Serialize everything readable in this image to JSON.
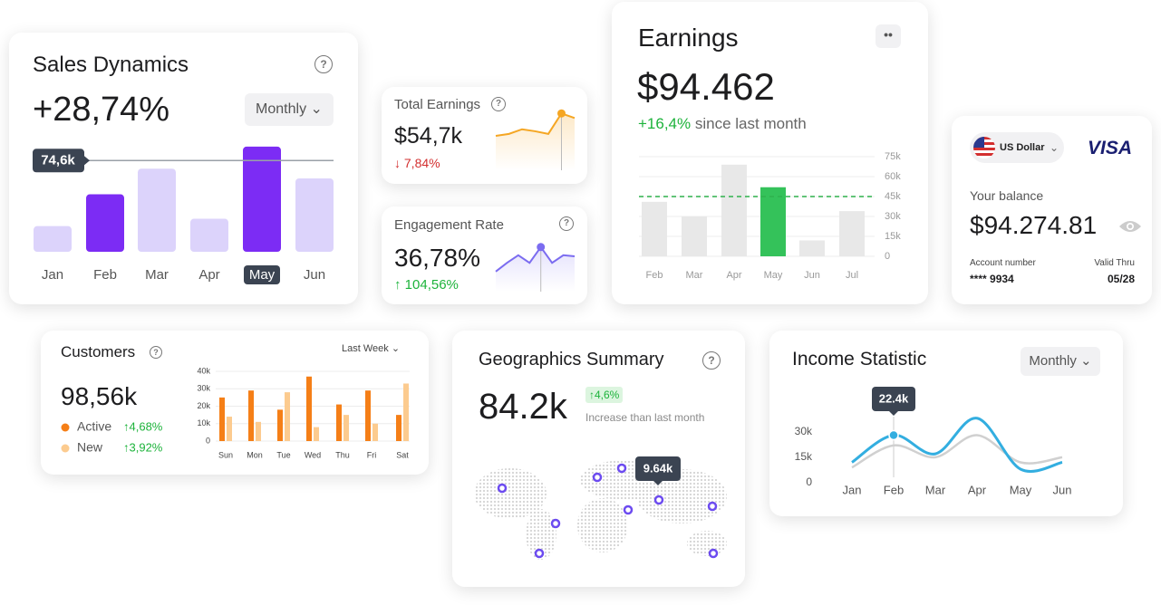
{
  "sales": {
    "title": "Sales Dynamics",
    "change": "+28,74%",
    "period": "Monthly",
    "chart": {
      "type": "bar",
      "categories": [
        "Jan",
        "Feb",
        "Mar",
        "Apr",
        "May",
        "Jun"
      ],
      "values": [
        21,
        47,
        68,
        27,
        86,
        60
      ],
      "colors": [
        "#dcd3fb",
        "#7c2cf4",
        "#dcd3fb",
        "#dcd3fb",
        "#7c2cf4",
        "#dcd3fb"
      ],
      "ylim": [
        0,
        100
      ],
      "active_index": 4,
      "reference": {
        "value": 74.6,
        "label": "74,6k"
      }
    }
  },
  "total_earnings": {
    "title": "Total Earnings",
    "value": "$54,7k",
    "change": "↓ 7,84%",
    "chart": {
      "type": "line",
      "values": [
        52,
        55,
        62,
        59,
        55,
        86,
        79
      ],
      "color": "#f5a623",
      "ylim": [
        0,
        100
      ],
      "marker_index": 5
    }
  },
  "engagement": {
    "title": "Engagement Rate",
    "value": "36,78%",
    "change": "↑ 104,56%",
    "chart": {
      "type": "line",
      "values": [
        37,
        53,
        67,
        53,
        82,
        53,
        67,
        65
      ],
      "color": "#7b6cf0",
      "ylim": [
        0,
        100
      ],
      "marker_index": 4
    }
  },
  "earnings": {
    "title": "Earnings",
    "value": "$94.462",
    "change": "+16,4%",
    "change_note": "since last month",
    "chart": {
      "type": "bar",
      "categories": [
        "Feb",
        "Mar",
        "Apr",
        "May",
        "Jun",
        "Jul"
      ],
      "values": [
        41,
        30,
        69,
        52,
        12,
        34
      ],
      "colors": [
        "#e8e8e8",
        "#e8e8e8",
        "#e8e8e8",
        "#34c25a",
        "#e8e8e8",
        "#e8e8e8"
      ],
      "ylim": [
        0,
        75
      ],
      "yticks": [
        0,
        {
          "value": 15,
          "label": "15k"
        },
        {
          "value": 30,
          "label": "30k"
        },
        {
          "value": 45,
          "label": "45k"
        },
        {
          "value": 60,
          "label": "60k"
        },
        {
          "value": 75,
          "label": "75k"
        }
      ],
      "grid": true,
      "average": 45,
      "average_color": "#2fb14c"
    }
  },
  "balance": {
    "currency": "US Dollar",
    "brand": "VISA",
    "label": "Your balance",
    "amount": "$94.274.81",
    "account_label": "Account number",
    "account": "**** 9934",
    "valid_label": "Valid Thru",
    "valid": "05/28"
  },
  "customers": {
    "title": "Customers",
    "value": "98,56k",
    "period": "Last Week",
    "chart": {
      "type": "bar",
      "categories": [
        "Sun",
        "Mon",
        "Tue",
        "Wed",
        "Thu",
        "Fri",
        "Sat"
      ],
      "series": [
        {
          "name": "Active",
          "change": "↑4,68%",
          "color": "#f57f17",
          "values": [
            25,
            29,
            18,
            37,
            21,
            29,
            15
          ]
        },
        {
          "name": "New",
          "change": "↑3,92%",
          "color": "#fccb8f",
          "values": [
            14,
            11,
            28,
            8,
            15,
            10,
            33
          ]
        }
      ],
      "ylim": [
        0,
        40
      ],
      "yticks": [
        0,
        {
          "value": 10,
          "label": "10k"
        },
        {
          "value": 20,
          "label": "20k"
        },
        {
          "value": 30,
          "label": "30k"
        },
        {
          "value": 40,
          "label": "40k"
        }
      ],
      "grid": true
    }
  },
  "geo": {
    "title": "Geographics Summary",
    "value": "84.2k",
    "change": "↑4,6%",
    "change_note": "Increase than last month",
    "tooltip": "9.64k"
  },
  "income": {
    "title": "Income Statistic",
    "period": "Monthly",
    "tooltip": "22.4k",
    "chart": {
      "type": "line",
      "categories": [
        "Jan",
        "Feb",
        "Mar",
        "Apr",
        "May",
        "Jun"
      ],
      "series": [
        {
          "color": "#33aee0",
          "values": [
            12,
            28,
            17,
            38,
            8,
            12
          ]
        },
        {
          "color": "#d0d0d0",
          "values": [
            9,
            22,
            15,
            28,
            12,
            15
          ]
        }
      ],
      "ylim": [
        0,
        40
      ],
      "yticks": [
        0,
        {
          "value": 15,
          "label": "15k"
        },
        {
          "value": 30,
          "label": "30k"
        }
      ],
      "tooltip_index": 1
    }
  }
}
